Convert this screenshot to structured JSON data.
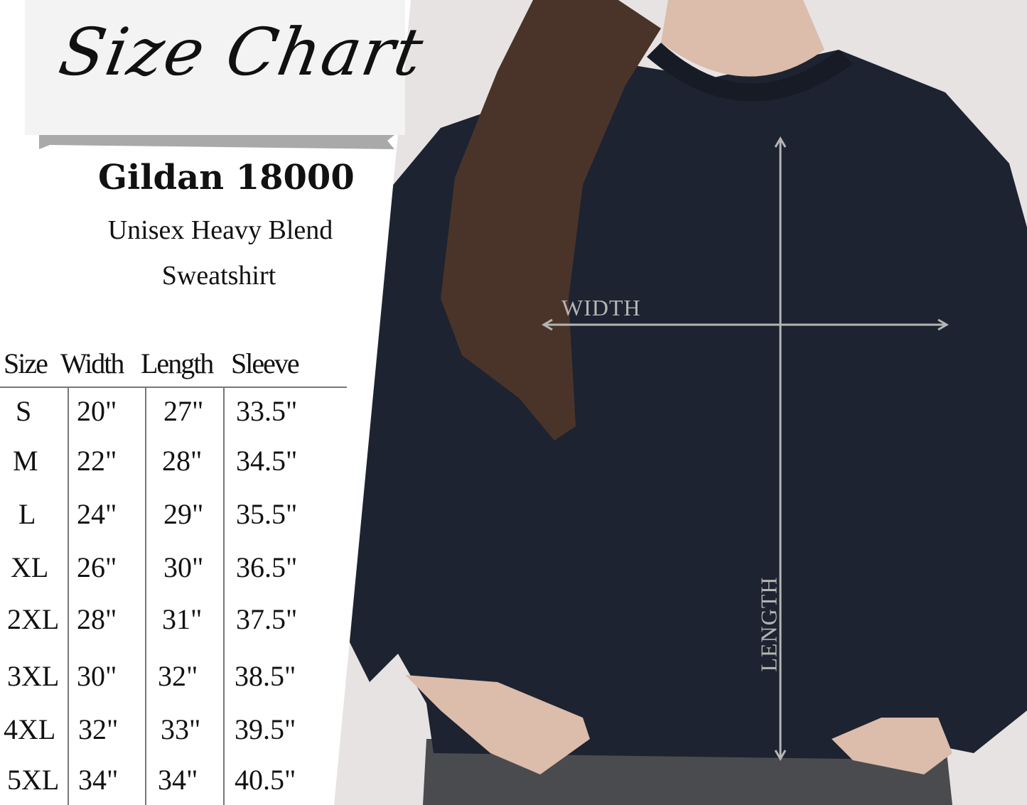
{
  "header": {
    "title": "Size Chart",
    "product": "Gildan 18000",
    "subtitle_line1": "Unisex  Heavy Blend",
    "subtitle_line2": "Sweatshirt"
  },
  "table": {
    "columns": [
      "Size",
      "Width",
      "Length",
      "Sleeve"
    ],
    "rows": [
      [
        "S",
        "20\"",
        "27\"",
        "33.5\""
      ],
      [
        "M",
        "22\"",
        "28\"",
        "34.5\""
      ],
      [
        "L",
        "24\"",
        "29\"",
        "35.5\""
      ],
      [
        "XL",
        "26\"",
        "30\"",
        "36.5\""
      ],
      [
        "2XL",
        "28\"",
        "31\"",
        "37.5\""
      ],
      [
        "3XL",
        "30\"",
        "32\"",
        "38.5\""
      ],
      [
        "4XL",
        "32\"",
        "33\"",
        "39.5\""
      ],
      [
        "5XL",
        "34\"",
        "34\"",
        "40.5\""
      ]
    ]
  },
  "measurements": {
    "width_label": "WIDTH",
    "length_label": "LENGTH"
  },
  "colors": {
    "background": "#e8e3e3",
    "panel": "#ffffff",
    "sweatshirt": "#1d2330",
    "arrow": "#b5b5b5"
  }
}
